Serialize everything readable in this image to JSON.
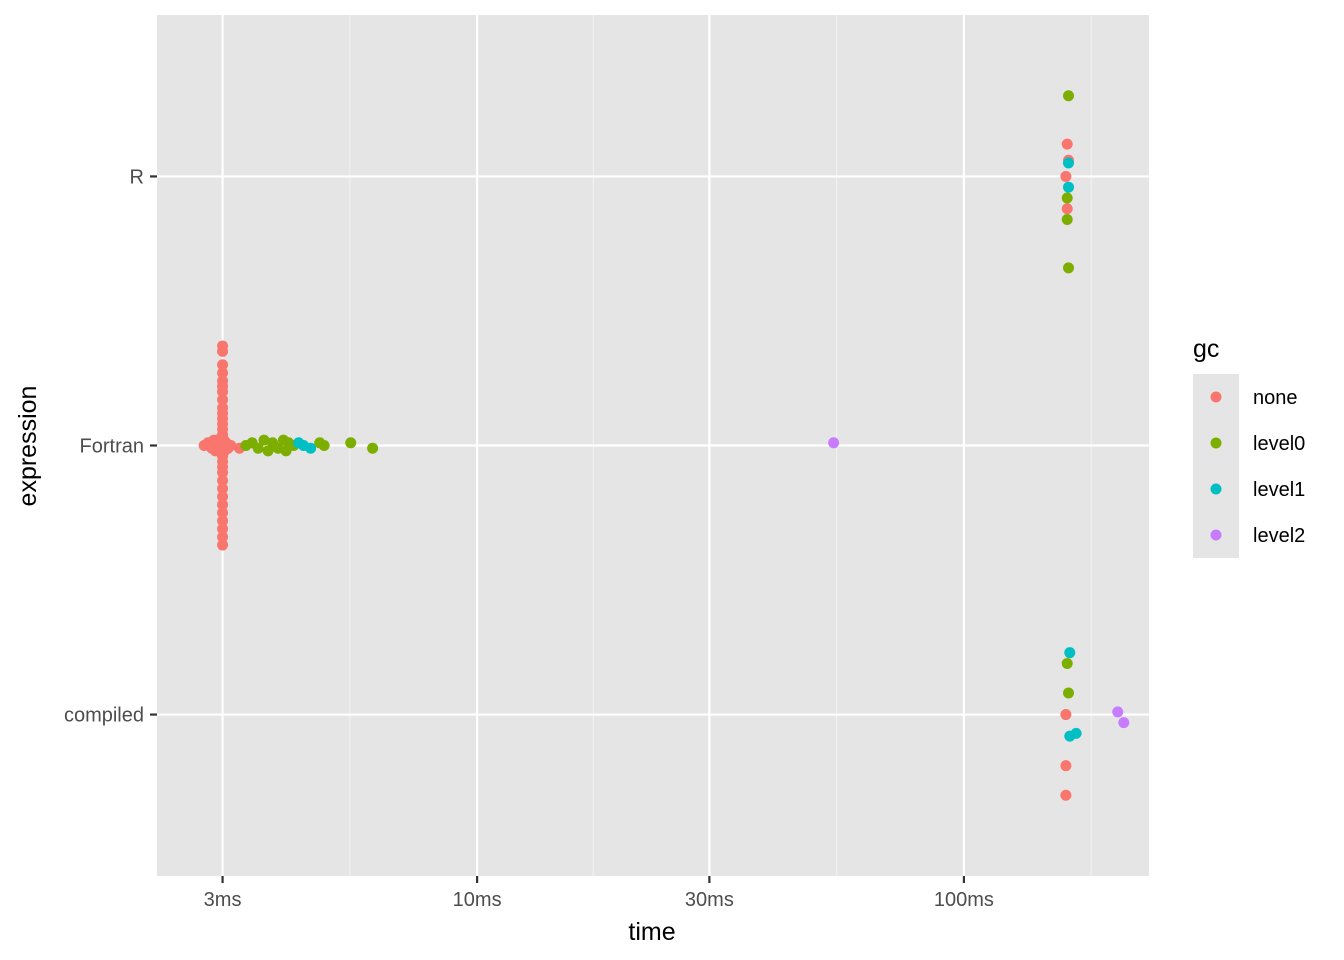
{
  "chart_data": {
    "type": "scatter",
    "title": "",
    "xlabel": "time",
    "ylabel": "expression",
    "x_scale": "log10",
    "x_unit": "ms",
    "xlim": [
      2.2,
      240
    ],
    "x_ticks": [
      {
        "value": 3,
        "label": "3ms"
      },
      {
        "value": 10,
        "label": "10ms"
      },
      {
        "value": 30,
        "label": "30ms"
      },
      {
        "value": 100,
        "label": "100ms"
      }
    ],
    "categories": [
      "compiled",
      "Fortran",
      "R"
    ],
    "grid": true,
    "background": "#e5e5e5",
    "legend": {
      "title": "gc",
      "position": "right",
      "items": [
        {
          "key": "none",
          "label": "none",
          "color": "#F8766D"
        },
        {
          "key": "level0",
          "label": "level0",
          "color": "#7CAE00"
        },
        {
          "key": "level1",
          "label": "level1",
          "color": "#00BFC4"
        },
        {
          "key": "level2",
          "label": "level2",
          "color": "#C77CFF"
        }
      ]
    },
    "series": [
      {
        "name": "none",
        "color": "#F8766D",
        "points": [
          {
            "category": "R",
            "x": 163,
            "jitter": 0.12
          },
          {
            "category": "R",
            "x": 164,
            "jitter": 0.06
          },
          {
            "category": "R",
            "x": 162,
            "jitter": 0.0
          },
          {
            "category": "R",
            "x": 163,
            "jitter": -0.12
          },
          {
            "category": "Fortran",
            "x": 2.75,
            "jitter": 0.0
          },
          {
            "category": "Fortran",
            "x": 2.8,
            "jitter": 0.01
          },
          {
            "category": "Fortran",
            "x": 2.85,
            "jitter": -0.01
          },
          {
            "category": "Fortran",
            "x": 2.88,
            "jitter": 0.02
          },
          {
            "category": "Fortran",
            "x": 2.9,
            "jitter": -0.02
          },
          {
            "category": "Fortran",
            "x": 2.93,
            "jitter": 0.01
          },
          {
            "category": "Fortran",
            "x": 2.95,
            "jitter": -0.01
          },
          {
            "category": "Fortran",
            "x": 2.97,
            "jitter": 0.0
          },
          {
            "category": "Fortran",
            "x": 2.98,
            "jitter": 0.03
          },
          {
            "category": "Fortran",
            "x": 2.99,
            "jitter": -0.03
          },
          {
            "category": "Fortran",
            "x": 3.0,
            "jitter": 0.37
          },
          {
            "category": "Fortran",
            "x": 3.0,
            "jitter": 0.35
          },
          {
            "category": "Fortran",
            "x": 3.0,
            "jitter": 0.3
          },
          {
            "category": "Fortran",
            "x": 3.0,
            "jitter": 0.27
          },
          {
            "category": "Fortran",
            "x": 3.0,
            "jitter": 0.24
          },
          {
            "category": "Fortran",
            "x": 3.0,
            "jitter": 0.22
          },
          {
            "category": "Fortran",
            "x": 3.0,
            "jitter": 0.2
          },
          {
            "category": "Fortran",
            "x": 3.0,
            "jitter": 0.17
          },
          {
            "category": "Fortran",
            "x": 3.0,
            "jitter": 0.14
          },
          {
            "category": "Fortran",
            "x": 3.0,
            "jitter": 0.12
          },
          {
            "category": "Fortran",
            "x": 3.0,
            "jitter": 0.1
          },
          {
            "category": "Fortran",
            "x": 3.0,
            "jitter": 0.08
          },
          {
            "category": "Fortran",
            "x": 3.0,
            "jitter": 0.06
          },
          {
            "category": "Fortran",
            "x": 3.0,
            "jitter": 0.04
          },
          {
            "category": "Fortran",
            "x": 3.0,
            "jitter": -0.04
          },
          {
            "category": "Fortran",
            "x": 3.0,
            "jitter": -0.06
          },
          {
            "category": "Fortran",
            "x": 3.0,
            "jitter": -0.08
          },
          {
            "category": "Fortran",
            "x": 3.0,
            "jitter": -0.1
          },
          {
            "category": "Fortran",
            "x": 3.0,
            "jitter": -0.13
          },
          {
            "category": "Fortran",
            "x": 3.0,
            "jitter": -0.16
          },
          {
            "category": "Fortran",
            "x": 3.0,
            "jitter": -0.19
          },
          {
            "category": "Fortran",
            "x": 3.0,
            "jitter": -0.22
          },
          {
            "category": "Fortran",
            "x": 3.0,
            "jitter": -0.25
          },
          {
            "category": "Fortran",
            "x": 3.0,
            "jitter": -0.28
          },
          {
            "category": "Fortran",
            "x": 3.0,
            "jitter": -0.31
          },
          {
            "category": "Fortran",
            "x": 3.0,
            "jitter": -0.34
          },
          {
            "category": "Fortran",
            "x": 3.0,
            "jitter": -0.37
          },
          {
            "category": "Fortran",
            "x": 3.02,
            "jitter": 0.02
          },
          {
            "category": "Fortran",
            "x": 3.03,
            "jitter": -0.02
          },
          {
            "category": "Fortran",
            "x": 3.05,
            "jitter": 0.01
          },
          {
            "category": "Fortran",
            "x": 3.08,
            "jitter": -0.01
          },
          {
            "category": "Fortran",
            "x": 3.12,
            "jitter": 0.0
          },
          {
            "category": "Fortran",
            "x": 3.25,
            "jitter": -0.01
          },
          {
            "category": "compiled",
            "x": 162,
            "jitter": 0.0
          },
          {
            "category": "compiled",
            "x": 162,
            "jitter": -0.19
          },
          {
            "category": "compiled",
            "x": 162,
            "jitter": -0.3
          }
        ]
      },
      {
        "name": "level0",
        "color": "#7CAE00",
        "points": [
          {
            "category": "R",
            "x": 164,
            "jitter": 0.3
          },
          {
            "category": "R",
            "x": 163,
            "jitter": -0.08
          },
          {
            "category": "R",
            "x": 163,
            "jitter": -0.16
          },
          {
            "category": "R",
            "x": 164,
            "jitter": -0.34
          },
          {
            "category": "Fortran",
            "x": 3.35,
            "jitter": 0.0
          },
          {
            "category": "Fortran",
            "x": 3.45,
            "jitter": 0.01
          },
          {
            "category": "Fortran",
            "x": 3.55,
            "jitter": -0.01
          },
          {
            "category": "Fortran",
            "x": 3.65,
            "jitter": 0.02
          },
          {
            "category": "Fortran",
            "x": 3.72,
            "jitter": -0.02
          },
          {
            "category": "Fortran",
            "x": 3.8,
            "jitter": 0.01
          },
          {
            "category": "Fortran",
            "x": 3.9,
            "jitter": -0.01
          },
          {
            "category": "Fortran",
            "x": 4.0,
            "jitter": 0.02
          },
          {
            "category": "Fortran",
            "x": 4.05,
            "jitter": -0.02
          },
          {
            "category": "Fortran",
            "x": 4.1,
            "jitter": 0.01
          },
          {
            "category": "Fortran",
            "x": 4.2,
            "jitter": 0.0
          },
          {
            "category": "Fortran",
            "x": 4.75,
            "jitter": 0.01
          },
          {
            "category": "Fortran",
            "x": 4.85,
            "jitter": 0.0
          },
          {
            "category": "Fortran",
            "x": 5.5,
            "jitter": 0.01
          },
          {
            "category": "Fortran",
            "x": 6.1,
            "jitter": -0.01
          },
          {
            "category": "compiled",
            "x": 163,
            "jitter": 0.19
          },
          {
            "category": "compiled",
            "x": 164,
            "jitter": 0.08
          }
        ]
      },
      {
        "name": "level1",
        "color": "#00BFC4",
        "points": [
          {
            "category": "R",
            "x": 164,
            "jitter": 0.05
          },
          {
            "category": "R",
            "x": 164,
            "jitter": -0.04
          },
          {
            "category": "Fortran",
            "x": 4.3,
            "jitter": 0.01
          },
          {
            "category": "Fortran",
            "x": 4.4,
            "jitter": 0.0
          },
          {
            "category": "Fortran",
            "x": 4.55,
            "jitter": -0.01
          },
          {
            "category": "compiled",
            "x": 165,
            "jitter": 0.23
          },
          {
            "category": "compiled",
            "x": 165,
            "jitter": -0.08
          },
          {
            "category": "compiled",
            "x": 170,
            "jitter": -0.07
          }
        ]
      },
      {
        "name": "level2",
        "color": "#C77CFF",
        "points": [
          {
            "category": "Fortran",
            "x": 54,
            "jitter": 0.01
          },
          {
            "category": "compiled",
            "x": 207,
            "jitter": 0.01
          },
          {
            "category": "compiled",
            "x": 213,
            "jitter": -0.03
          }
        ]
      }
    ]
  }
}
